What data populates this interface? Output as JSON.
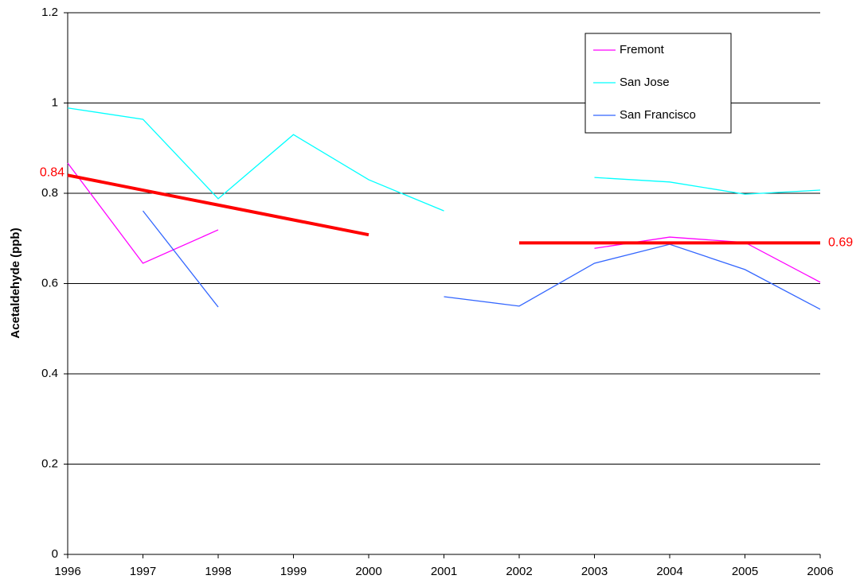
{
  "chart_data": {
    "type": "line",
    "y_label": "Acetaldehyde (ppb)",
    "categories": [
      "1996",
      "1997",
      "1998",
      "1999",
      "2000",
      "2001",
      "2002",
      "2003",
      "2004",
      "2005",
      "2006"
    ],
    "series": [
      {
        "name": "Fremont",
        "color": "#ff00ff",
        "values": [
          0.867,
          0.645,
          0.719,
          null,
          null,
          null,
          null,
          0.678,
          0.703,
          0.691,
          0.603
        ]
      },
      {
        "name": "San Jose",
        "color": "#00ffff",
        "values": [
          0.989,
          0.964,
          0.788,
          0.93,
          0.83,
          0.761,
          null,
          0.835,
          0.825,
          0.798,
          0.807
        ]
      },
      {
        "name": "San Francisco",
        "color": "#3366ff",
        "values": [
          null,
          0.761,
          0.548,
          null,
          null,
          0.571,
          0.55,
          0.645,
          0.687,
          0.631,
          0.543
        ]
      },
      {
        "color": "#ff0000",
        "values": [
          0.84,
          0.807,
          0.774,
          0.741,
          0.708,
          null,
          0.69,
          0.69,
          0.69,
          0.69,
          0.69
        ],
        "value_labels": [
          "0.84",
          null,
          null,
          null,
          null,
          null,
          null,
          null,
          null,
          null,
          "0.69"
        ]
      }
    ],
    "ylim": [
      0,
      1.2
    ],
    "yticks": [
      0,
      0.2,
      0.4,
      0.6,
      0.8,
      1,
      1.2
    ],
    "grid": true,
    "legend": "upper-right"
  }
}
